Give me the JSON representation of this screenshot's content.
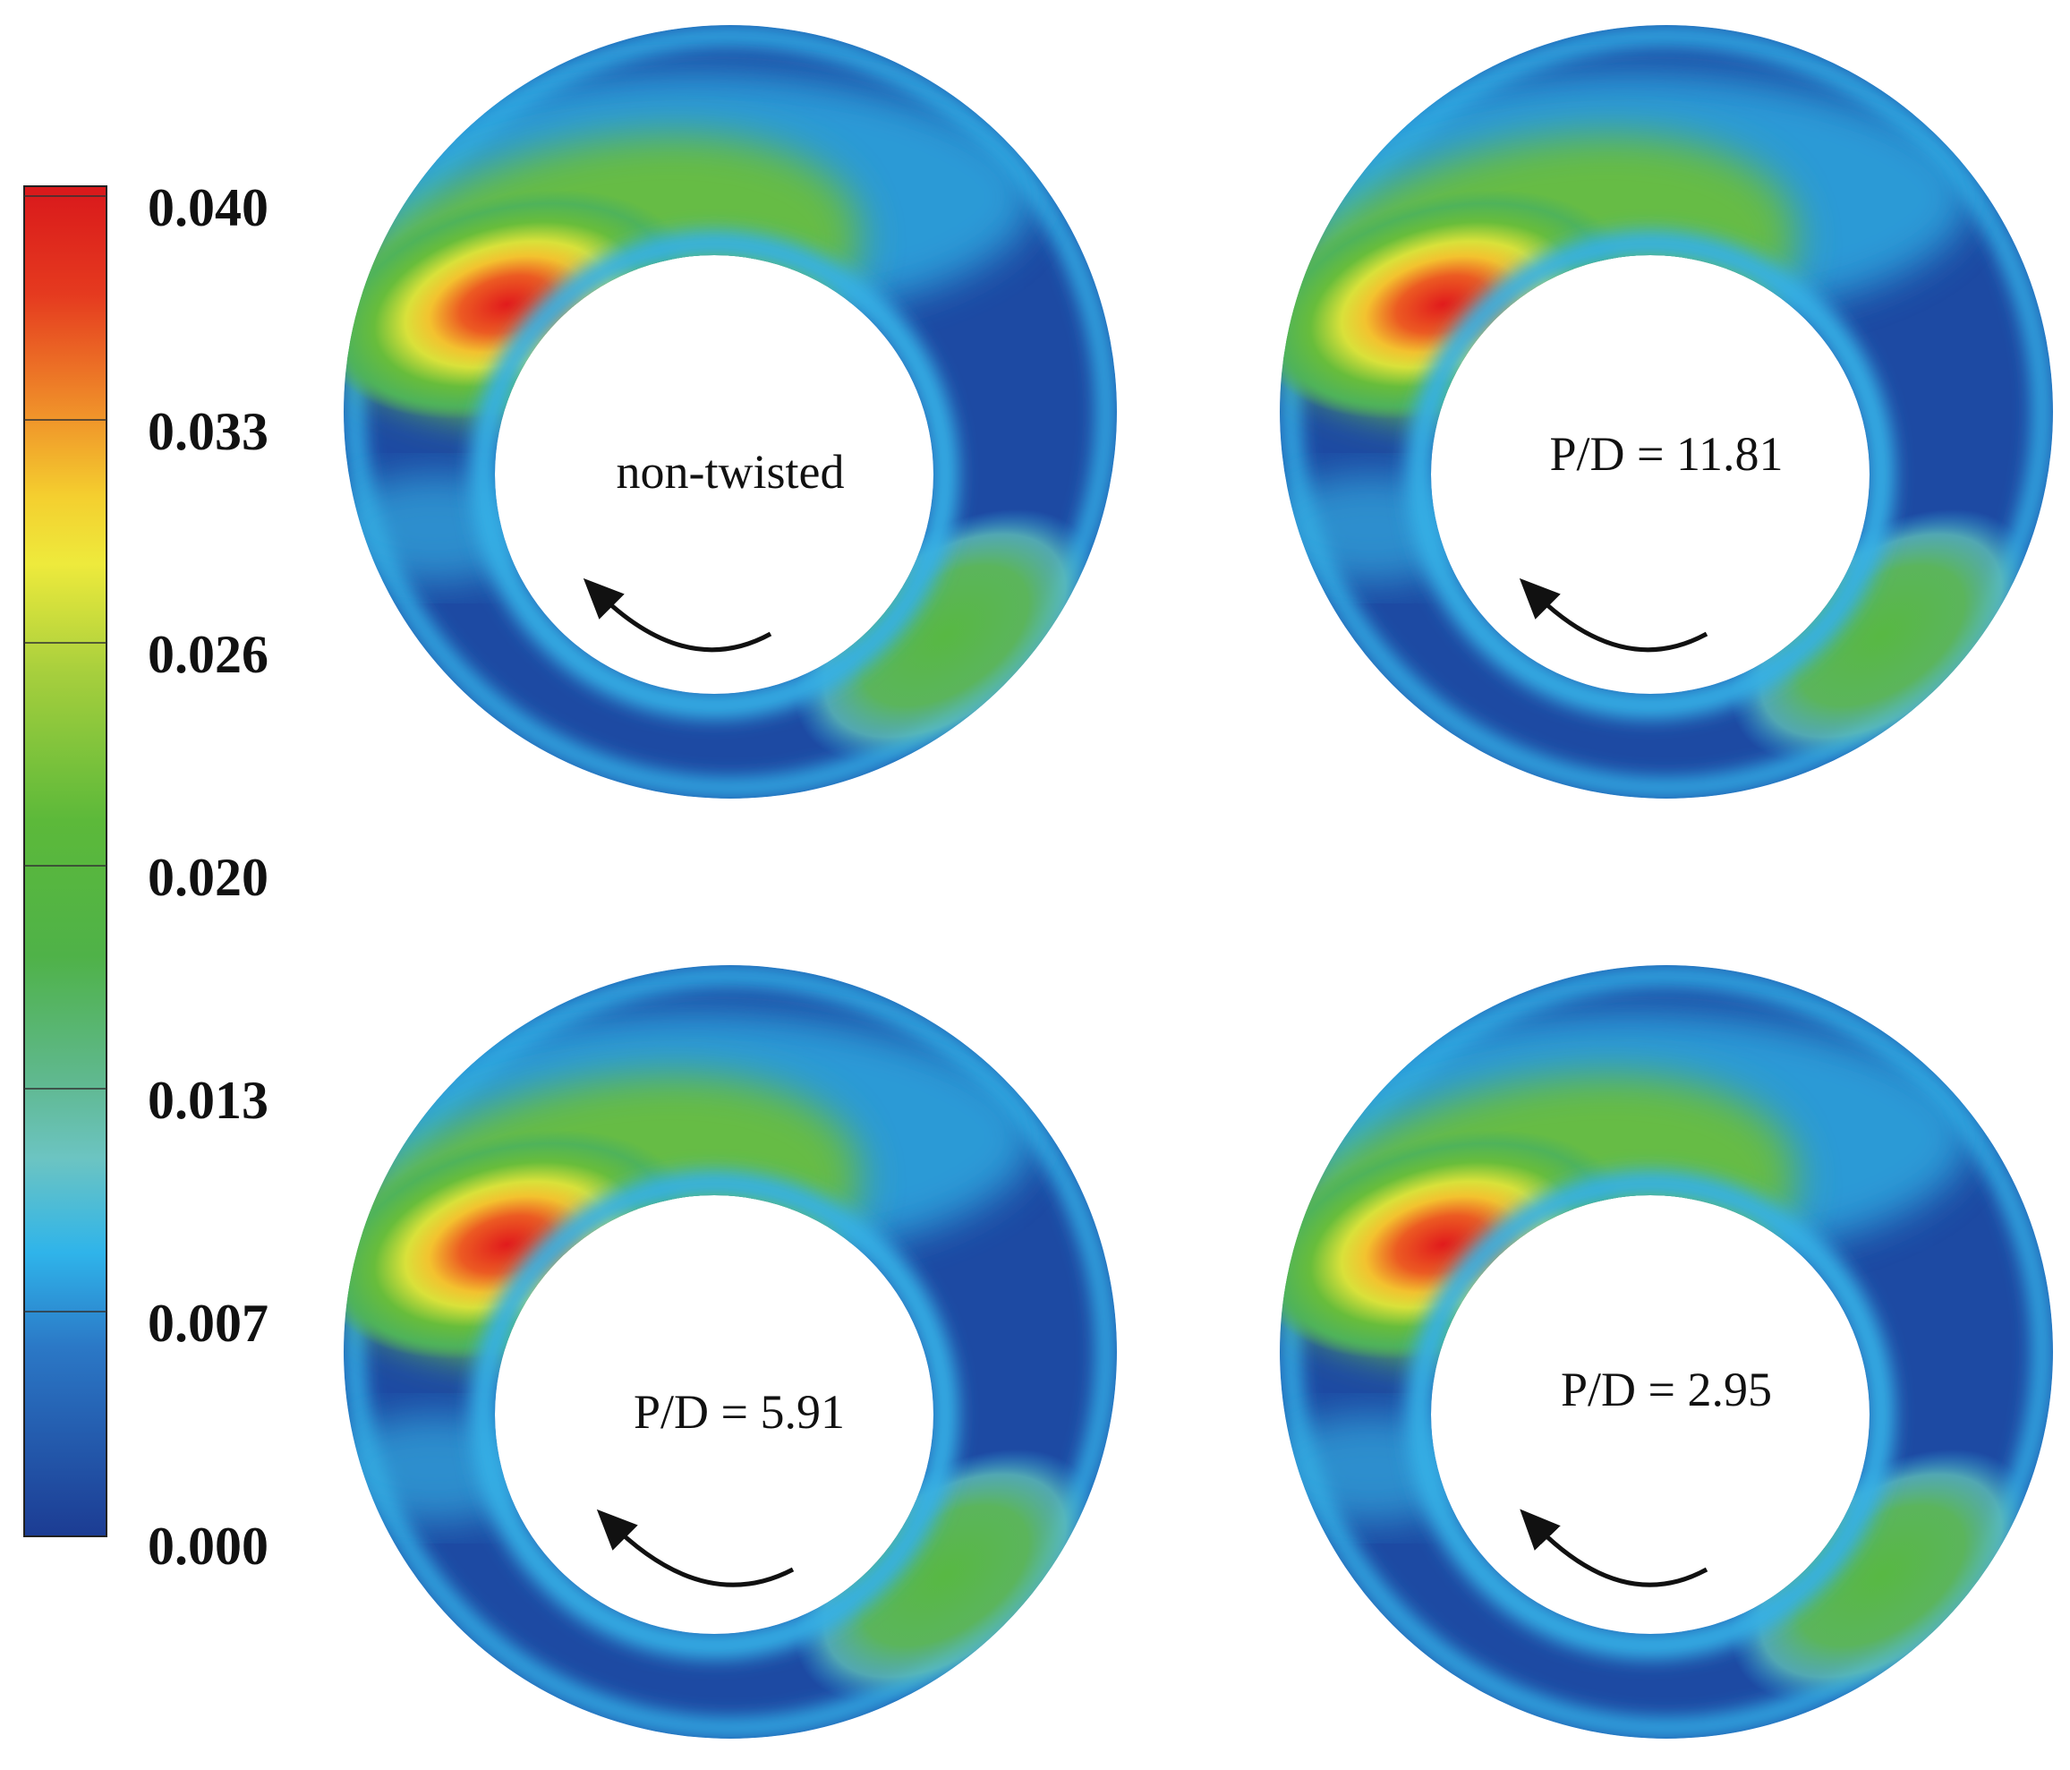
{
  "colorbar": {
    "ticks": [
      "0.040",
      "0.033",
      "0.026",
      "0.020",
      "0.013",
      "0.007",
      "0.000"
    ],
    "colors": [
      "#d7191c",
      "#f2992a",
      "#f1e63a",
      "#9ccc3b",
      "#55b84a",
      "#6cc2b0",
      "#2fb2e8",
      "#2a6fbf",
      "#1d3f96"
    ]
  },
  "panels": [
    {
      "label": "non-twisted"
    },
    {
      "label": "P/D = 11.81"
    },
    {
      "label": "P/D = 5.91"
    },
    {
      "label": "P/D = 2.95"
    }
  ]
}
